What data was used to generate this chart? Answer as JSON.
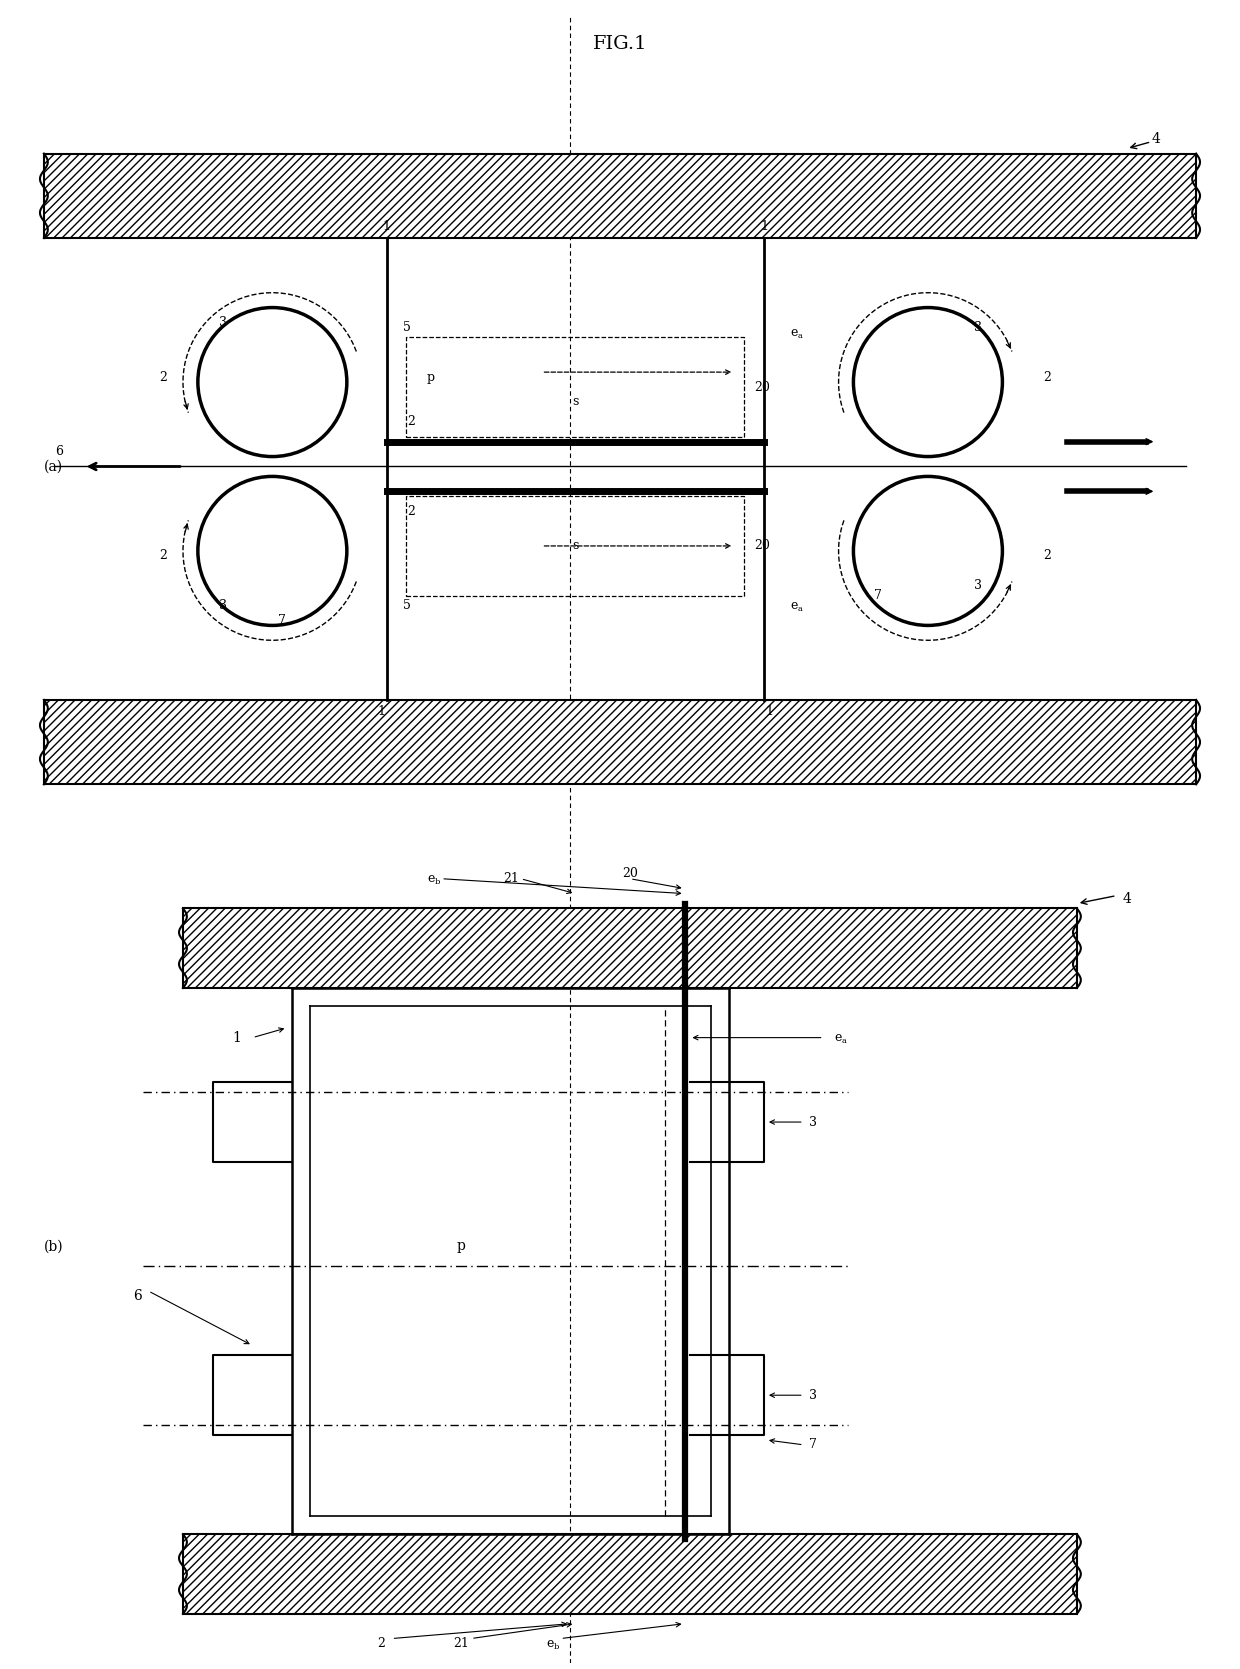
{
  "title": "FIG.1",
  "bg_color": "#ffffff",
  "line_color": "#000000",
  "fig_width": 12.4,
  "fig_height": 16.69,
  "label_a": "(a)",
  "label_b": "(b)"
}
